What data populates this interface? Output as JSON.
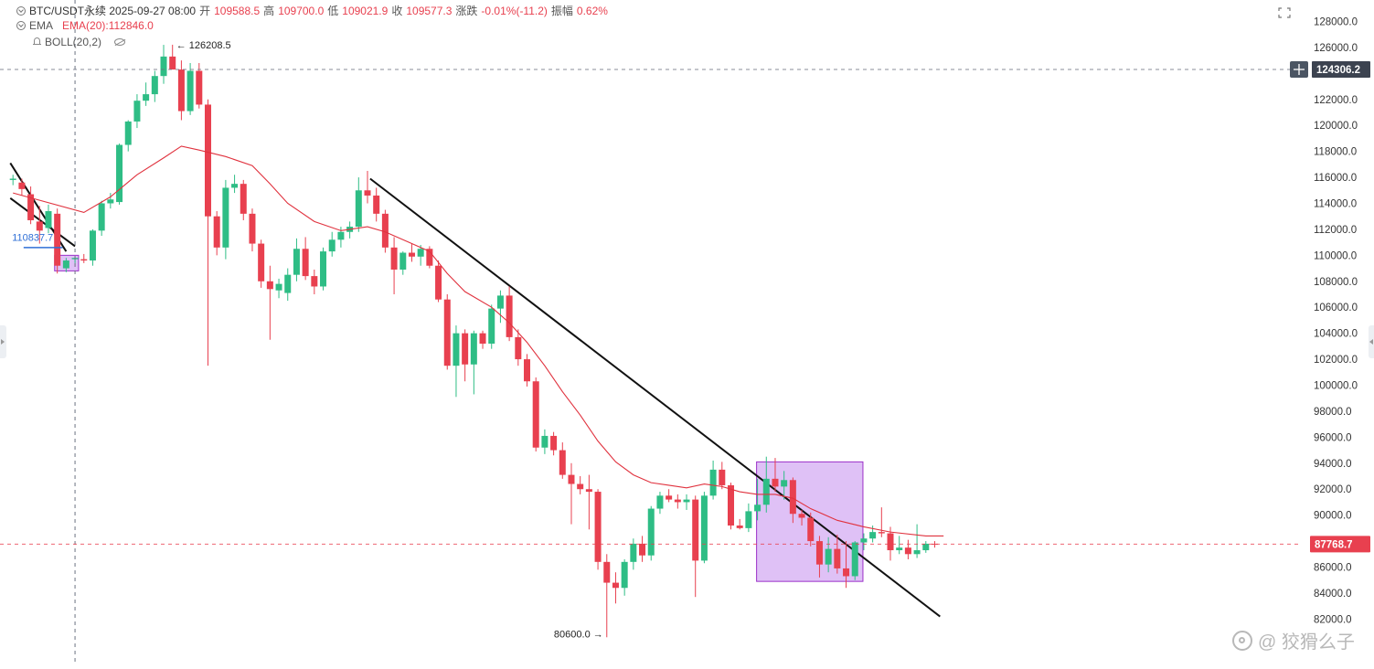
{
  "header": {
    "symbol_line": "BTC/USDT永续  2025-09-27 08:00",
    "open_label": "开",
    "open_value": "109588.5",
    "high_label": "高",
    "high_value": "109700.0",
    "low_label": "低",
    "low_value": "109021.9",
    "close_label": "收",
    "close_value": "109577.3",
    "change_label": "涨跌",
    "change_value": "-0.01%(-11.2)",
    "amp_label": "振幅",
    "amp_value": "0.62%",
    "ema_name": "EMA",
    "ema_value": "EMA(20):112846.0",
    "boll_name": "BOLL(20,2)"
  },
  "icons": {
    "collapse": "chevron-circle-icon",
    "alert": "bell-icon",
    "visibility": "eye-off-icon",
    "expand": "expand-icon",
    "crosshair": "plus-icon"
  },
  "colors": {
    "up": "#2ebd85",
    "down": "#e8404f",
    "ema": "#e0323e",
    "box_fill": "#d9b6f5",
    "box_stroke": "#9b30c9",
    "last_price_bg": "#e8404f",
    "crosshair_bg": "#3c4350",
    "hline_label_bg": "#2f6fd6"
  },
  "watermark": "@ 狡猾么子",
  "chart_data": {
    "type": "candlestick",
    "title": "BTC/USDT永续",
    "interval": "8h",
    "price_axis": {
      "ylim": [
        80000,
        129000
      ],
      "tick_step": 2000,
      "ticks": [
        82000,
        84000,
        86000,
        88000,
        90000,
        92000,
        94000,
        96000,
        98000,
        100000,
        102000,
        104000,
        106000,
        108000,
        110000,
        112000,
        114000,
        116000,
        118000,
        120000,
        122000,
        124000,
        126000,
        128000
      ],
      "tick_format": "fixed1"
    },
    "candles": [
      {
        "o": 115800,
        "h": 116200,
        "l": 115400,
        "c": 115900
      },
      {
        "o": 115600,
        "h": 115900,
        "l": 114600,
        "c": 115100
      },
      {
        "o": 114700,
        "h": 115300,
        "l": 112400,
        "c": 112700
      },
      {
        "o": 112600,
        "h": 113800,
        "l": 110900,
        "c": 111900
      },
      {
        "o": 112100,
        "h": 113900,
        "l": 111700,
        "c": 113400
      },
      {
        "o": 113200,
        "h": 113600,
        "l": 108600,
        "c": 109200
      },
      {
        "o": 109000,
        "h": 109800,
        "l": 108700,
        "c": 109600
      },
      {
        "o": 109700,
        "h": 109900,
        "l": 109400,
        "c": 109800
      },
      {
        "o": 109700,
        "h": 110100,
        "l": 109400,
        "c": 109600
      },
      {
        "o": 109600,
        "h": 112000,
        "l": 109200,
        "c": 111900
      },
      {
        "o": 111900,
        "h": 114200,
        "l": 111500,
        "c": 114000
      },
      {
        "o": 114000,
        "h": 114800,
        "l": 113600,
        "c": 114300
      },
      {
        "o": 114100,
        "h": 118600,
        "l": 113900,
        "c": 118500
      },
      {
        "o": 118500,
        "h": 120400,
        "l": 118000,
        "c": 120300
      },
      {
        "o": 120300,
        "h": 122400,
        "l": 119800,
        "c": 121900
      },
      {
        "o": 121900,
        "h": 123300,
        "l": 121500,
        "c": 122400
      },
      {
        "o": 122400,
        "h": 124200,
        "l": 121800,
        "c": 123800
      },
      {
        "o": 123800,
        "h": 126200,
        "l": 123200,
        "c": 125300
      },
      {
        "o": 125300,
        "h": 126208.5,
        "l": 124700,
        "c": 124300
      },
      {
        "o": 124300,
        "h": 125000,
        "l": 120400,
        "c": 121100
      },
      {
        "o": 121100,
        "h": 124800,
        "l": 120800,
        "c": 124200
      },
      {
        "o": 124200,
        "h": 124800,
        "l": 121300,
        "c": 121600
      },
      {
        "o": 121600,
        "h": 122000,
        "l": 101500,
        "c": 113000
      },
      {
        "o": 113000,
        "h": 113400,
        "l": 110000,
        "c": 110600
      },
      {
        "o": 110600,
        "h": 115800,
        "l": 109700,
        "c": 115200
      },
      {
        "o": 115200,
        "h": 116200,
        "l": 114800,
        "c": 115500
      },
      {
        "o": 115500,
        "h": 115800,
        "l": 112700,
        "c": 113200
      },
      {
        "o": 113200,
        "h": 113600,
        "l": 110300,
        "c": 110900
      },
      {
        "o": 110900,
        "h": 111200,
        "l": 107500,
        "c": 108000
      },
      {
        "o": 108000,
        "h": 109200,
        "l": 103500,
        "c": 107400
      },
      {
        "o": 107300,
        "h": 108200,
        "l": 106700,
        "c": 107800
      },
      {
        "o": 107100,
        "h": 109000,
        "l": 106500,
        "c": 108500
      },
      {
        "o": 108500,
        "h": 111300,
        "l": 108000,
        "c": 110500
      },
      {
        "o": 110500,
        "h": 111400,
        "l": 108100,
        "c": 108400
      },
      {
        "o": 108400,
        "h": 108900,
        "l": 107000,
        "c": 107600
      },
      {
        "o": 107600,
        "h": 110600,
        "l": 107300,
        "c": 110300
      },
      {
        "o": 110300,
        "h": 111800,
        "l": 109900,
        "c": 111200
      },
      {
        "o": 111200,
        "h": 112200,
        "l": 110600,
        "c": 111800
      },
      {
        "o": 111800,
        "h": 112600,
        "l": 111300,
        "c": 112200
      },
      {
        "o": 112200,
        "h": 116000,
        "l": 111800,
        "c": 115000
      },
      {
        "o": 115000,
        "h": 116500,
        "l": 114000,
        "c": 114600
      },
      {
        "o": 114600,
        "h": 115200,
        "l": 112600,
        "c": 113200
      },
      {
        "o": 113200,
        "h": 113500,
        "l": 110200,
        "c": 110600
      },
      {
        "o": 110600,
        "h": 111400,
        "l": 107000,
        "c": 108900
      },
      {
        "o": 108900,
        "h": 110300,
        "l": 108500,
        "c": 110200
      },
      {
        "o": 110200,
        "h": 110900,
        "l": 109500,
        "c": 109900
      },
      {
        "o": 109900,
        "h": 110800,
        "l": 109200,
        "c": 110500
      },
      {
        "o": 110500,
        "h": 110700,
        "l": 109000,
        "c": 109200
      },
      {
        "o": 109200,
        "h": 109600,
        "l": 106400,
        "c": 106600
      },
      {
        "o": 106600,
        "h": 107000,
        "l": 101200,
        "c": 101500
      },
      {
        "o": 101500,
        "h": 104600,
        "l": 99100,
        "c": 104000
      },
      {
        "o": 104000,
        "h": 104300,
        "l": 100300,
        "c": 101600
      },
      {
        "o": 101600,
        "h": 104200,
        "l": 99300,
        "c": 104000
      },
      {
        "o": 104000,
        "h": 104200,
        "l": 102800,
        "c": 103200
      },
      {
        "o": 103200,
        "h": 106200,
        "l": 102800,
        "c": 105900
      },
      {
        "o": 105900,
        "h": 107300,
        "l": 104800,
        "c": 106900
      },
      {
        "o": 106900,
        "h": 107600,
        "l": 103400,
        "c": 103700
      },
      {
        "o": 103700,
        "h": 104300,
        "l": 101500,
        "c": 102000
      },
      {
        "o": 102000,
        "h": 102400,
        "l": 99900,
        "c": 100300
      },
      {
        "o": 100300,
        "h": 100600,
        "l": 94900,
        "c": 95200
      },
      {
        "o": 95200,
        "h": 96600,
        "l": 94700,
        "c": 96100
      },
      {
        "o": 96100,
        "h": 96400,
        "l": 94600,
        "c": 95000
      },
      {
        "o": 95000,
        "h": 95600,
        "l": 92800,
        "c": 93100
      },
      {
        "o": 93100,
        "h": 94000,
        "l": 89300,
        "c": 92400
      },
      {
        "o": 92400,
        "h": 93000,
        "l": 91600,
        "c": 92000
      },
      {
        "o": 92000,
        "h": 93100,
        "l": 88900,
        "c": 91800
      },
      {
        "o": 91800,
        "h": 92000,
        "l": 85800,
        "c": 86400
      },
      {
        "o": 86400,
        "h": 87000,
        "l": 80600,
        "c": 84800
      },
      {
        "o": 84800,
        "h": 85600,
        "l": 83200,
        "c": 84400
      },
      {
        "o": 84400,
        "h": 86600,
        "l": 83800,
        "c": 86400
      },
      {
        "o": 86400,
        "h": 88200,
        "l": 85800,
        "c": 87800
      },
      {
        "o": 87800,
        "h": 88400,
        "l": 86400,
        "c": 86900
      },
      {
        "o": 86900,
        "h": 90700,
        "l": 86500,
        "c": 90500
      },
      {
        "o": 90500,
        "h": 91800,
        "l": 90100,
        "c": 91500
      },
      {
        "o": 91500,
        "h": 92000,
        "l": 91000,
        "c": 91200
      },
      {
        "o": 91200,
        "h": 91600,
        "l": 90500,
        "c": 91000
      },
      {
        "o": 91000,
        "h": 91600,
        "l": 90400,
        "c": 91200
      },
      {
        "o": 91200,
        "h": 91500,
        "l": 83700,
        "c": 86500
      },
      {
        "o": 86500,
        "h": 91800,
        "l": 86300,
        "c": 91500
      },
      {
        "o": 91500,
        "h": 94200,
        "l": 91200,
        "c": 93500
      },
      {
        "o": 93500,
        "h": 94100,
        "l": 92000,
        "c": 92300
      },
      {
        "o": 92300,
        "h": 92500,
        "l": 88900,
        "c": 89200
      },
      {
        "o": 89200,
        "h": 89700,
        "l": 88900,
        "c": 89000
      },
      {
        "o": 89000,
        "h": 90900,
        "l": 88700,
        "c": 90300
      },
      {
        "o": 90300,
        "h": 92800,
        "l": 89600,
        "c": 90800
      },
      {
        "o": 90800,
        "h": 94500,
        "l": 90200,
        "c": 92800
      },
      {
        "o": 92800,
        "h": 94400,
        "l": 91800,
        "c": 92200
      },
      {
        "o": 92200,
        "h": 93400,
        "l": 91200,
        "c": 92700
      },
      {
        "o": 92700,
        "h": 92900,
        "l": 89400,
        "c": 90100
      },
      {
        "o": 90100,
        "h": 90400,
        "l": 89200,
        "c": 89800
      },
      {
        "o": 89800,
        "h": 90200,
        "l": 87600,
        "c": 88000
      },
      {
        "o": 88000,
        "h": 88400,
        "l": 85200,
        "c": 86200
      },
      {
        "o": 86200,
        "h": 88300,
        "l": 85600,
        "c": 87400
      },
      {
        "o": 87400,
        "h": 88500,
        "l": 85500,
        "c": 85900
      },
      {
        "o": 85900,
        "h": 88000,
        "l": 84400,
        "c": 85300
      },
      {
        "o": 85300,
        "h": 88000,
        "l": 85000,
        "c": 87900
      },
      {
        "o": 87900,
        "h": 88600,
        "l": 87300,
        "c": 88200
      },
      {
        "o": 88200,
        "h": 89200,
        "l": 87900,
        "c": 88700
      },
      {
        "o": 88700,
        "h": 90600,
        "l": 88300,
        "c": 88600
      },
      {
        "o": 88600,
        "h": 89100,
        "l": 86500,
        "c": 87300
      },
      {
        "o": 87300,
        "h": 88400,
        "l": 87000,
        "c": 87500
      },
      {
        "o": 87500,
        "h": 88100,
        "l": 86600,
        "c": 87000
      },
      {
        "o": 87000,
        "h": 89300,
        "l": 86700,
        "c": 87300
      },
      {
        "o": 87300,
        "h": 88000,
        "l": 87100,
        "c": 87800
      },
      {
        "o": 87800,
        "h": 88000,
        "l": 87500,
        "c": 87768.7
      }
    ],
    "ema20": {
      "name": "EMA(20)",
      "points": [
        [
          0,
          114800
        ],
        [
          8,
          113300
        ],
        [
          11,
          114500
        ],
        [
          14,
          116200
        ],
        [
          17,
          117500
        ],
        [
          19,
          118400
        ],
        [
          21,
          118100
        ],
        [
          24,
          117600
        ],
        [
          27,
          116900
        ],
        [
          29,
          115500
        ],
        [
          31,
          114000
        ],
        [
          34,
          112600
        ],
        [
          37,
          111900
        ],
        [
          40,
          112200
        ],
        [
          42,
          111800
        ],
        [
          45,
          110900
        ],
        [
          47,
          110300
        ],
        [
          49,
          108600
        ],
        [
          51,
          107200
        ],
        [
          54,
          106000
        ],
        [
          56,
          104800
        ],
        [
          58,
          103300
        ],
        [
          60,
          101500
        ],
        [
          62,
          99500
        ],
        [
          64,
          97700
        ],
        [
          66,
          95700
        ],
        [
          68,
          94100
        ],
        [
          70,
          93100
        ],
        [
          72,
          92500
        ],
        [
          74,
          92300
        ],
        [
          76,
          92100
        ],
        [
          78,
          92400
        ],
        [
          80,
          92200
        ],
        [
          82,
          91800
        ],
        [
          84,
          91600
        ],
        [
          86,
          91600
        ],
        [
          88,
          91300
        ],
        [
          90,
          90500
        ],
        [
          93,
          89600
        ],
        [
          96,
          89100
        ],
        [
          99,
          88700
        ],
        [
          103,
          88400
        ],
        [
          105,
          88400
        ]
      ]
    },
    "annotations": {
      "high_label": "126208.5",
      "low_label": "80600.0",
      "left_hline_label": "110837.7"
    },
    "horizontal_lines": [
      {
        "price": 124306.2,
        "label": "124306.2",
        "style": "dashed",
        "role": "crosshair"
      },
      {
        "price": 87768.7,
        "label": "87768.7",
        "style": "dashed",
        "role": "last-price"
      }
    ],
    "crosshair_x_index": 7,
    "trendlines": [
      {
        "from": [
          -0.3,
          117100
        ],
        "to": [
          6,
          110300
        ]
      },
      {
        "from": [
          -0.3,
          114400
        ],
        "to": [
          7,
          110700
        ]
      },
      {
        "from": [
          40.3,
          115900
        ],
        "to": [
          104.6,
          82200
        ]
      }
    ],
    "boxes": [
      {
        "x0": 4.7,
        "x1": 7.4,
        "p0": 108800,
        "p1": 110000
      },
      {
        "x0": 83.9,
        "x1": 95.9,
        "p0": 84900,
        "p1": 94100
      }
    ],
    "grid": false
  }
}
